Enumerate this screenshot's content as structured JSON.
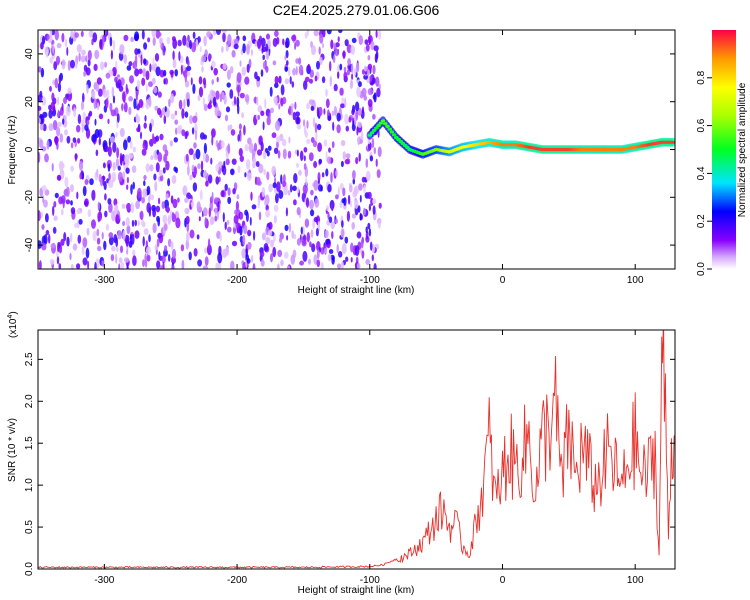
{
  "title": "C2E4.2025.279.01.06.G06",
  "chart_data": [
    {
      "type": "heatmap",
      "xlabel": "Height of straight line (km)",
      "ylabel": "Frequency (Hz)",
      "xlim": [
        -350,
        130
      ],
      "ylim": [
        -50,
        50
      ],
      "xticks": [
        -300,
        -200,
        -100,
        0,
        100
      ],
      "yticks": [
        -40,
        -20,
        0,
        20,
        40
      ],
      "colorbar": {
        "label": "Normalized spectral amplitude",
        "range": [
          0.0,
          1.0
        ],
        "ticks": [
          "0.0",
          "0.2",
          "0.4",
          "0.6",
          "0.8"
        ],
        "tick_values": [
          0.0,
          0.2,
          0.4,
          0.6,
          0.8
        ]
      },
      "noise_region_x": [
        -350,
        -92
      ],
      "signal_track": {
        "x": [
          -100,
          -90,
          -80,
          -70,
          -60,
          -50,
          -40,
          -30,
          -20,
          -10,
          0,
          10,
          20,
          30,
          40,
          50,
          60,
          70,
          80,
          90,
          100,
          110,
          120,
          130
        ],
        "freq": [
          6,
          12,
          5,
          0,
          -2,
          0,
          -1,
          1,
          2,
          3,
          2,
          2,
          1,
          0,
          0,
          0,
          0,
          0,
          0,
          0,
          1,
          2,
          3,
          3
        ],
        "amplitude": [
          0.45,
          0.55,
          0.5,
          0.45,
          0.55,
          0.6,
          0.7,
          0.75,
          0.8,
          0.85,
          0.9,
          0.9,
          0.95,
          0.95,
          0.95,
          0.95,
          0.9,
          0.9,
          0.9,
          0.9,
          0.9,
          0.95,
          0.95,
          0.95
        ]
      }
    },
    {
      "type": "line",
      "xlabel": "Height of straight line (km)",
      "ylabel": "SNR (10 * v/v)",
      "multiplier": "(x10",
      "multiplier_exp": "4",
      "multiplier_close": ")",
      "xlim": [
        -350,
        130
      ],
      "ylim": [
        0,
        2.85
      ],
      "xticks": [
        -300,
        -200,
        -100,
        0,
        100
      ],
      "yticks": [
        0.0,
        0.5,
        1.0,
        1.5,
        2.0,
        2.5
      ],
      "yticklabels": [
        "0.0",
        "0.5",
        "1.0",
        "1.5",
        "2.0",
        "2.5"
      ],
      "color": "#e8302b",
      "series": [
        {
          "name": "SNR",
          "x": [
            -350,
            -300,
            -250,
            -200,
            -150,
            -100,
            -90,
            -80,
            -70,
            -60,
            -55,
            -50,
            -45,
            -40,
            -35,
            -30,
            -25,
            -20,
            -15,
            -10,
            -5,
            0,
            5,
            10,
            15,
            20,
            25,
            30,
            35,
            40,
            45,
            50,
            55,
            60,
            65,
            70,
            75,
            80,
            85,
            90,
            95,
            100,
            105,
            110,
            115,
            118,
            120,
            122,
            125,
            128,
            130
          ],
          "values": [
            0.02,
            0.02,
            0.02,
            0.02,
            0.02,
            0.03,
            0.05,
            0.12,
            0.2,
            0.35,
            0.5,
            0.65,
            0.8,
            0.55,
            0.6,
            0.3,
            0.2,
            0.6,
            1.05,
            1.7,
            0.9,
            1.25,
            1.55,
            1.35,
            1.5,
            1.75,
            1.0,
            1.7,
            1.9,
            2.1,
            1.1,
            1.85,
            1.2,
            1.6,
            1.35,
            1.1,
            1.25,
            1.55,
            1.3,
            1.05,
            1.45,
            1.7,
            1.2,
            1.3,
            1.55,
            0.15,
            2.9,
            2.45,
            0.5,
            1.8,
            1.6
          ]
        }
      ]
    }
  ]
}
